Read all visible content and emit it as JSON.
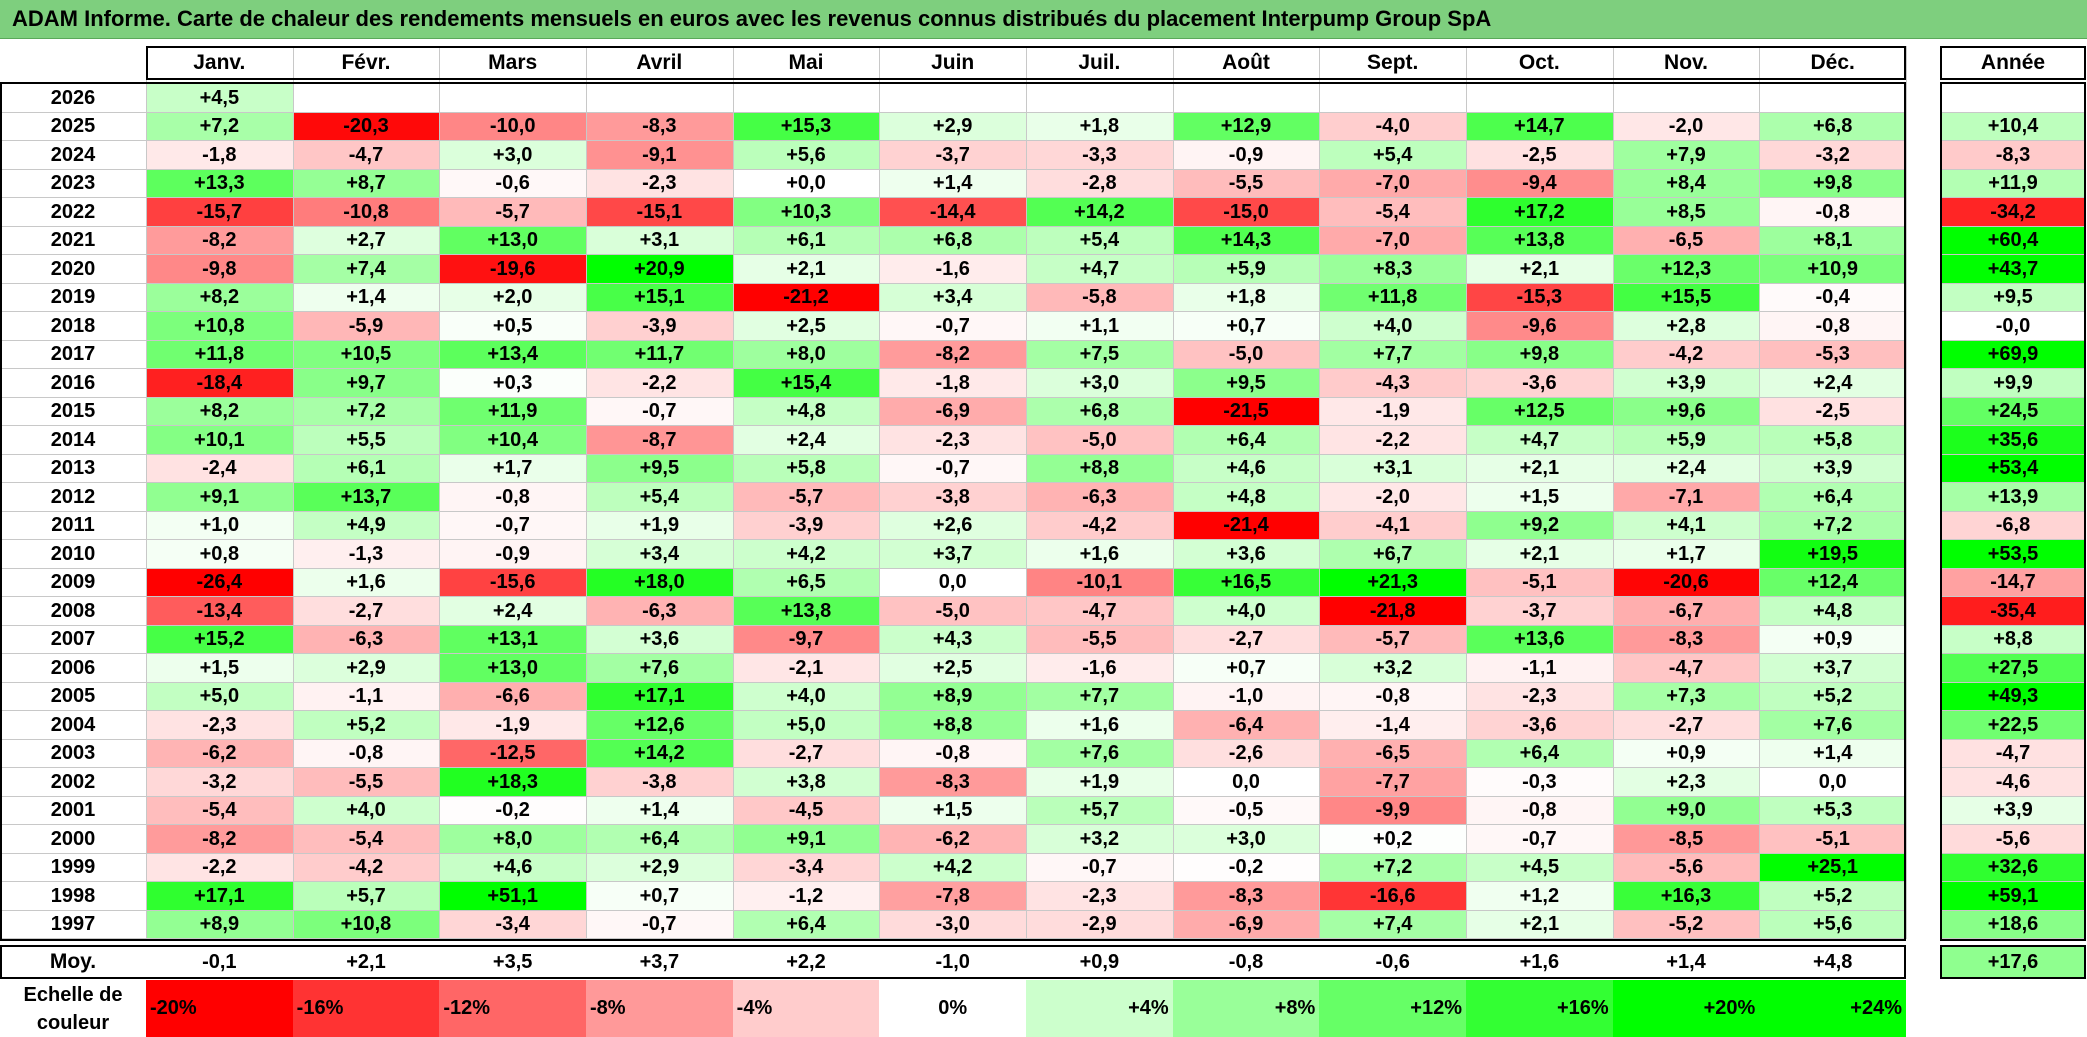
{
  "title": "ADAM Informe. Carte de chaleur des rendements mensuels en euros avec les revenus connus distribués du placement Interpump Group SpA",
  "chart_data": {
    "type": "heatmap",
    "columns": [
      "Janv.",
      "Févr.",
      "Mars",
      "Avril",
      "Mai",
      "Juin",
      "Juil.",
      "Août",
      "Sept.",
      "Oct.",
      "Nov.",
      "Déc."
    ],
    "year_header": "Année",
    "rows": [
      {
        "year": "2026",
        "months": [
          "+4,5",
          "",
          "",
          "",
          "",
          "",
          "",
          "",
          "",
          "",
          "",
          ""
        ],
        "annual": ""
      },
      {
        "year": "2025",
        "months": [
          "+7,2",
          "-20,3",
          "-10,0",
          "-8,3",
          "+15,3",
          "+2,9",
          "+1,8",
          "+12,9",
          "-4,0",
          "+14,7",
          "-2,0",
          "+6,8"
        ],
        "annual": "+10,4"
      },
      {
        "year": "2024",
        "months": [
          "-1,8",
          "-4,7",
          "+3,0",
          "-9,1",
          "+5,6",
          "-3,7",
          "-3,3",
          "-0,9",
          "+5,4",
          "-2,5",
          "+7,9",
          "-3,2"
        ],
        "annual": "-8,3"
      },
      {
        "year": "2023",
        "months": [
          "+13,3",
          "+8,7",
          "-0,6",
          "-2,3",
          "+0,0",
          "+1,4",
          "-2,8",
          "-5,5",
          "-7,0",
          "-9,4",
          "+8,4",
          "+9,8"
        ],
        "annual": "+11,9"
      },
      {
        "year": "2022",
        "months": [
          "-15,7",
          "-10,8",
          "-5,7",
          "-15,1",
          "+10,3",
          "-14,4",
          "+14,2",
          "-15,0",
          "-5,4",
          "+17,2",
          "+8,5",
          "-0,8"
        ],
        "annual": "-34,2"
      },
      {
        "year": "2021",
        "months": [
          "-8,2",
          "+2,7",
          "+13,0",
          "+3,1",
          "+6,1",
          "+6,8",
          "+5,4",
          "+14,3",
          "-7,0",
          "+13,8",
          "-6,5",
          "+8,1"
        ],
        "annual": "+60,4"
      },
      {
        "year": "2020",
        "months": [
          "-9,8",
          "+7,4",
          "-19,6",
          "+20,9",
          "+2,1",
          "-1,6",
          "+4,7",
          "+5,9",
          "+8,3",
          "+2,1",
          "+12,3",
          "+10,9"
        ],
        "annual": "+43,7"
      },
      {
        "year": "2019",
        "months": [
          "+8,2",
          "+1,4",
          "+2,0",
          "+15,1",
          "-21,2",
          "+3,4",
          "-5,8",
          "+1,8",
          "+11,8",
          "-15,3",
          "+15,5",
          "-0,4"
        ],
        "annual": "+9,5"
      },
      {
        "year": "2018",
        "months": [
          "+10,8",
          "-5,9",
          "+0,5",
          "-3,9",
          "+2,5",
          "-0,7",
          "+1,1",
          "+0,7",
          "+4,0",
          "-9,6",
          "+2,8",
          "-0,8"
        ],
        "annual": "-0,0"
      },
      {
        "year": "2017",
        "months": [
          "+11,8",
          "+10,5",
          "+13,4",
          "+11,7",
          "+8,0",
          "-8,2",
          "+7,5",
          "-5,0",
          "+7,7",
          "+9,8",
          "-4,2",
          "-5,3"
        ],
        "annual": "+69,9"
      },
      {
        "year": "2016",
        "months": [
          "-18,4",
          "+9,7",
          "+0,3",
          "-2,2",
          "+15,4",
          "-1,8",
          "+3,0",
          "+9,5",
          "-4,3",
          "-3,6",
          "+3,9",
          "+2,4"
        ],
        "annual": "+9,9"
      },
      {
        "year": "2015",
        "months": [
          "+8,2",
          "+7,2",
          "+11,9",
          "-0,7",
          "+4,8",
          "-6,9",
          "+6,8",
          "-21,5",
          "-1,9",
          "+12,5",
          "+9,6",
          "-2,5"
        ],
        "annual": "+24,5"
      },
      {
        "year": "2014",
        "months": [
          "+10,1",
          "+5,5",
          "+10,4",
          "-8,7",
          "+2,4",
          "-2,3",
          "-5,0",
          "+6,4",
          "-2,2",
          "+4,7",
          "+5,9",
          "+5,8"
        ],
        "annual": "+35,6"
      },
      {
        "year": "2013",
        "months": [
          "-2,4",
          "+6,1",
          "+1,7",
          "+9,5",
          "+5,8",
          "-0,7",
          "+8,8",
          "+4,6",
          "+3,1",
          "+2,1",
          "+2,4",
          "+3,9"
        ],
        "annual": "+53,4"
      },
      {
        "year": "2012",
        "months": [
          "+9,1",
          "+13,7",
          "-0,8",
          "+5,4",
          "-5,7",
          "-3,8",
          "-6,3",
          "+4,8",
          "-2,0",
          "+1,5",
          "-7,1",
          "+6,4"
        ],
        "annual": "+13,9"
      },
      {
        "year": "2011",
        "months": [
          "+1,0",
          "+4,9",
          "-0,7",
          "+1,9",
          "-3,9",
          "+2,6",
          "-4,2",
          "-21,4",
          "-4,1",
          "+9,2",
          "+4,1",
          "+7,2"
        ],
        "annual": "-6,8"
      },
      {
        "year": "2010",
        "months": [
          "+0,8",
          "-1,3",
          "-0,9",
          "+3,4",
          "+4,2",
          "+3,7",
          "+1,6",
          "+3,6",
          "+6,7",
          "+2,1",
          "+1,7",
          "+19,5"
        ],
        "annual": "+53,5"
      },
      {
        "year": "2009",
        "months": [
          "-26,4",
          "+1,6",
          "-15,6",
          "+18,0",
          "+6,5",
          "0,0",
          "-10,1",
          "+16,5",
          "+21,3",
          "-5,1",
          "-20,6",
          "+12,4"
        ],
        "annual": "-14,7"
      },
      {
        "year": "2008",
        "months": [
          "-13,4",
          "-2,7",
          "+2,4",
          "-6,3",
          "+13,8",
          "-5,0",
          "-4,7",
          "+4,0",
          "-21,8",
          "-3,7",
          "-6,7",
          "+4,8"
        ],
        "annual": "-35,4"
      },
      {
        "year": "2007",
        "months": [
          "+15,2",
          "-6,3",
          "+13,1",
          "+3,6",
          "-9,7",
          "+4,3",
          "-5,5",
          "-2,7",
          "-5,7",
          "+13,6",
          "-8,3",
          "+0,9"
        ],
        "annual": "+8,8"
      },
      {
        "year": "2006",
        "months": [
          "+1,5",
          "+2,9",
          "+13,0",
          "+7,6",
          "-2,1",
          "+2,5",
          "-1,6",
          "+0,7",
          "+3,2",
          "-1,1",
          "-4,7",
          "+3,7"
        ],
        "annual": "+27,5"
      },
      {
        "year": "2005",
        "months": [
          "+5,0",
          "-1,1",
          "-6,6",
          "+17,1",
          "+4,0",
          "+8,9",
          "+7,7",
          "-1,0",
          "-0,8",
          "-2,3",
          "+7,3",
          "+5,2"
        ],
        "annual": "+49,3"
      },
      {
        "year": "2004",
        "months": [
          "-2,3",
          "+5,2",
          "-1,9",
          "+12,6",
          "+5,0",
          "+8,8",
          "+1,6",
          "-6,4",
          "-1,4",
          "-3,6",
          "-2,7",
          "+7,6"
        ],
        "annual": "+22,5"
      },
      {
        "year": "2003",
        "months": [
          "-6,2",
          "-0,8",
          "-12,5",
          "+14,2",
          "-2,7",
          "-0,8",
          "+7,6",
          "-2,6",
          "-6,5",
          "+6,4",
          "+0,9",
          "+1,4"
        ],
        "annual": "-4,7"
      },
      {
        "year": "2002",
        "months": [
          "-3,2",
          "-5,5",
          "+18,3",
          "-3,8",
          "+3,8",
          "-8,3",
          "+1,9",
          "0,0",
          "-7,7",
          "-0,3",
          "+2,3",
          "0,0"
        ],
        "annual": "-4,6"
      },
      {
        "year": "2001",
        "months": [
          "-5,4",
          "+4,0",
          "-0,2",
          "+1,4",
          "-4,5",
          "+1,5",
          "+5,7",
          "-0,5",
          "-9,9",
          "-0,8",
          "+9,0",
          "+5,3"
        ],
        "annual": "+3,9"
      },
      {
        "year": "2000",
        "months": [
          "-8,2",
          "-5,4",
          "+8,0",
          "+6,4",
          "+9,1",
          "-6,2",
          "+3,2",
          "+3,0",
          "+0,2",
          "-0,7",
          "-8,5",
          "-5,1"
        ],
        "annual": "-5,6"
      },
      {
        "year": "1999",
        "months": [
          "-2,2",
          "-4,2",
          "+4,6",
          "+2,9",
          "-3,4",
          "+4,2",
          "-0,7",
          "-0,2",
          "+7,2",
          "+4,5",
          "-5,6",
          "+25,1"
        ],
        "annual": "+32,6"
      },
      {
        "year": "1998",
        "months": [
          "+17,1",
          "+5,7",
          "+51,1",
          "+0,7",
          "-1,2",
          "-7,8",
          "-2,3",
          "-8,3",
          "-16,6",
          "+1,2",
          "+16,3",
          "+5,2"
        ],
        "annual": "+59,1"
      },
      {
        "year": "1997",
        "months": [
          "+8,9",
          "+10,8",
          "-3,4",
          "-0,7",
          "+6,4",
          "-3,0",
          "-2,9",
          "-6,9",
          "+7,4",
          "+2,1",
          "-5,2",
          "+5,6"
        ],
        "annual": "+18,6"
      }
    ],
    "average": {
      "label": "Moy.",
      "months": [
        "-0,1",
        "+2,1",
        "+3,5",
        "+3,7",
        "+2,2",
        "-1,0",
        "+0,9",
        "-0,8",
        "-0,6",
        "+1,6",
        "+1,4",
        "+4,8"
      ],
      "annual": "+17,6"
    },
    "color_scale": {
      "label": "Echelle de couleur",
      "stops": [
        "-20%",
        "-16%",
        "-12%",
        "-8%",
        "-4%",
        "0%",
        "+4%",
        "+8%",
        "+12%",
        "+16%",
        "+20%",
        "+24%"
      ],
      "values": [
        -20,
        -16,
        -12,
        -8,
        -4,
        0,
        4,
        8,
        12,
        16,
        20,
        24
      ],
      "negative_color": "#ff0000",
      "zero_color": "#ffffff",
      "positive_color": "#00ff00"
    }
  }
}
